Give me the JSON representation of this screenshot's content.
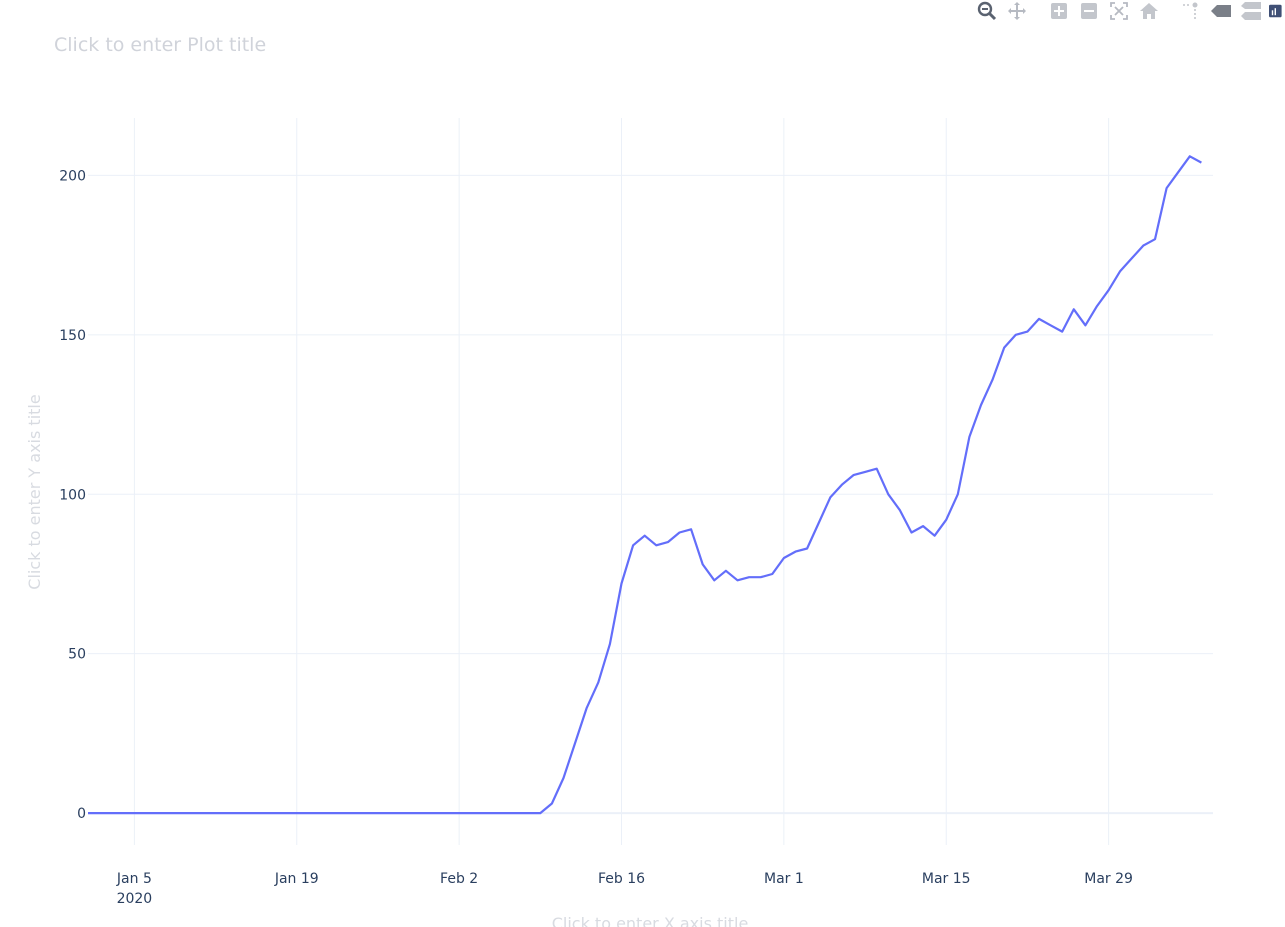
{
  "modebar": {
    "buttons": [
      {
        "name": "zoom-icon",
        "label": "Zoom"
      },
      {
        "name": "pan-icon",
        "label": "Pan"
      },
      {
        "name": "zoom-in-icon",
        "label": "Zoom in"
      },
      {
        "name": "zoom-out-icon",
        "label": "Zoom out"
      },
      {
        "name": "autoscale-icon",
        "label": "Autoscale"
      },
      {
        "name": "home-icon",
        "label": "Reset axes"
      },
      {
        "name": "spike-lines-icon",
        "label": "Toggle spike lines"
      },
      {
        "name": "hover-closest-icon",
        "label": "Show closest data on hover"
      },
      {
        "name": "hover-compare-icon",
        "label": "Compare data on hover"
      },
      {
        "name": "plotly-logo-icon",
        "label": "Produced with Plotly"
      }
    ]
  },
  "chart_data": {
    "type": "line",
    "title": "Click to enter Plot title",
    "xlabel": "Click to enter X axis title",
    "ylabel": "Click to enter Y axis title",
    "x_start": "2020-01-01",
    "x_step_days": 1,
    "xlim": [
      "2020-01-01",
      "2020-04-07"
    ],
    "ylim": [
      -10,
      218
    ],
    "x_ticks": [
      {
        "date": "2020-01-05",
        "label": "Jan 5",
        "sublabel": "2020"
      },
      {
        "date": "2020-01-19",
        "label": "Jan 19"
      },
      {
        "date": "2020-02-02",
        "label": "Feb 2"
      },
      {
        "date": "2020-02-16",
        "label": "Feb 16"
      },
      {
        "date": "2020-03-01",
        "label": "Mar 1"
      },
      {
        "date": "2020-03-15",
        "label": "Mar 15"
      },
      {
        "date": "2020-03-29",
        "label": "Mar 29"
      }
    ],
    "y_ticks": [
      0,
      50,
      100,
      150,
      200
    ],
    "grid": true,
    "line_color": "#636efa",
    "series": [
      {
        "values": [
          0,
          0,
          0,
          0,
          0,
          0,
          0,
          0,
          0,
          0,
          0,
          0,
          0,
          0,
          0,
          0,
          0,
          0,
          0,
          0,
          0,
          0,
          0,
          0,
          0,
          0,
          0,
          0,
          0,
          0,
          0,
          0,
          0,
          0,
          0,
          0,
          0,
          0,
          0,
          0,
          3,
          11,
          22,
          33,
          41,
          53,
          72,
          84,
          87,
          84,
          85,
          88,
          89,
          78,
          73,
          76,
          73,
          74,
          74,
          75,
          80,
          82,
          83,
          91,
          99,
          103,
          106,
          107,
          108,
          100,
          95,
          88,
          90,
          87,
          92,
          100,
          118,
          128,
          136,
          146,
          150,
          151,
          155,
          153,
          151,
          158,
          153,
          159,
          164,
          170,
          174,
          178,
          180,
          196,
          201,
          206,
          204
        ]
      }
    ]
  }
}
